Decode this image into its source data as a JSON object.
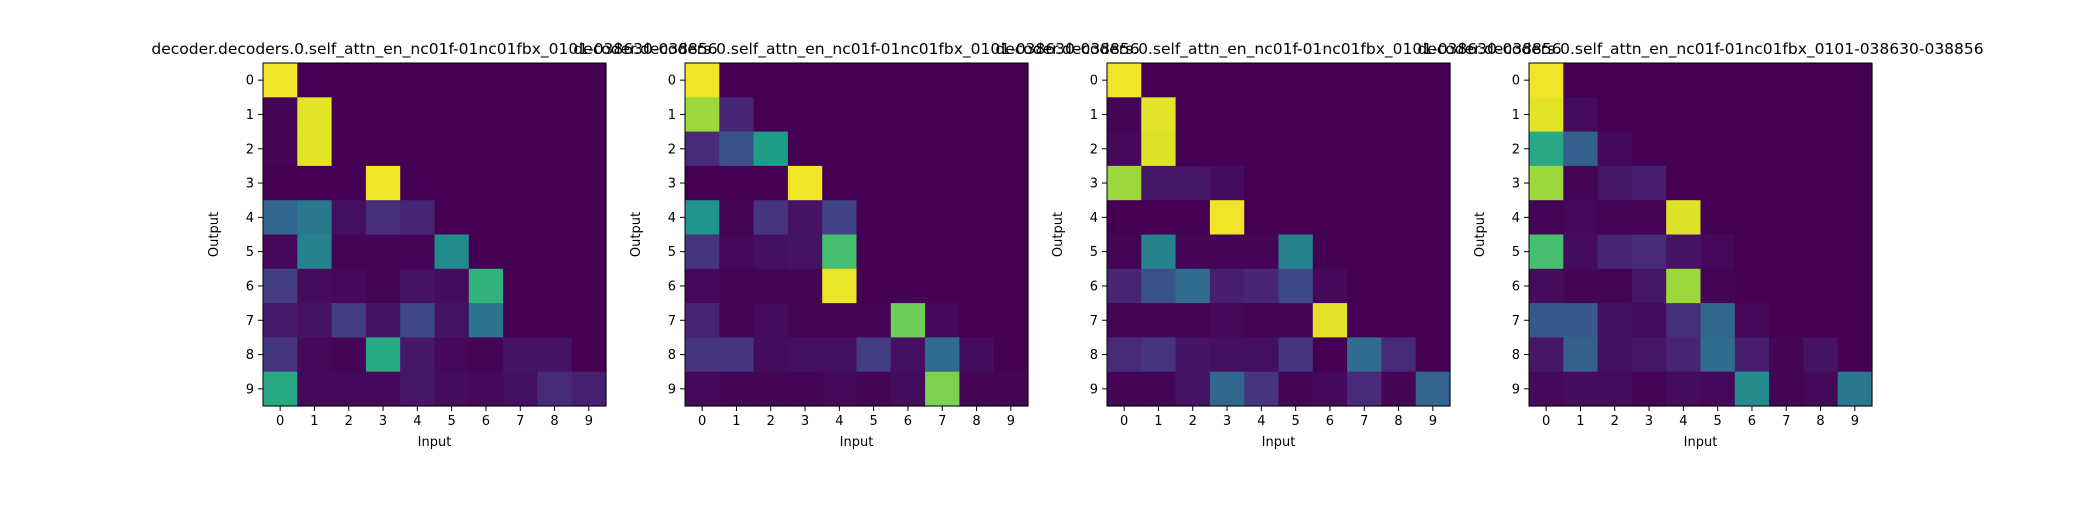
{
  "colors": {
    "viridis": [
      "#440154",
      "#482878",
      "#3e4989",
      "#31688e",
      "#26828e",
      "#1f9e89",
      "#35b779",
      "#6ece58",
      "#b5de2b",
      "#fde725"
    ],
    "axis": "#000000",
    "background": "#ffffff"
  },
  "chart_data": [
    {
      "type": "heatmap",
      "title": "decoder.decoders.0.self_attn_en_nc01f-01nc01fbx_0101-038630-038856",
      "xlabel": "Input",
      "ylabel": "Output",
      "x_ticks": [
        "0",
        "1",
        "2",
        "3",
        "4",
        "5",
        "6",
        "7",
        "8",
        "9"
      ],
      "y_ticks": [
        "0",
        "1",
        "2",
        "3",
        "4",
        "5",
        "6",
        "7",
        "8",
        "9"
      ],
      "colormap": "viridis",
      "value_range": [
        0,
        1
      ],
      "values": [
        [
          0.98,
          0,
          0,
          0,
          0,
          0,
          0,
          0,
          0,
          0
        ],
        [
          0.01,
          0.96,
          0,
          0,
          0,
          0,
          0,
          0,
          0,
          0
        ],
        [
          0.01,
          0.96,
          0,
          0,
          0,
          0,
          0,
          0,
          0,
          0
        ],
        [
          0,
          0,
          0,
          0.98,
          0,
          0,
          0,
          0,
          0,
          0
        ],
        [
          0.33,
          0.4,
          0.04,
          0.13,
          0.1,
          0,
          0,
          0,
          0,
          0
        ],
        [
          0.02,
          0.45,
          0.01,
          0.01,
          0.01,
          0.48,
          0,
          0,
          0,
          0
        ],
        [
          0.18,
          0.03,
          0.02,
          0.01,
          0.05,
          0.03,
          0.65,
          0,
          0,
          0
        ],
        [
          0.07,
          0.05,
          0.18,
          0.05,
          0.22,
          0.05,
          0.38,
          0,
          0,
          0
        ],
        [
          0.15,
          0.02,
          0.01,
          0.6,
          0.06,
          0.02,
          0.01,
          0.05,
          0.05,
          0
        ],
        [
          0.6,
          0.02,
          0.02,
          0.02,
          0.06,
          0.03,
          0.02,
          0.04,
          0.12,
          0.09
        ]
      ]
    },
    {
      "type": "heatmap",
      "title": "decoder.decoders.0.self_attn_en_nc01f-01nc01fbx_0101-038630-038856",
      "xlabel": "Input",
      "ylabel": "Output",
      "x_ticks": [
        "0",
        "1",
        "2",
        "3",
        "4",
        "5",
        "6",
        "7",
        "8",
        "9"
      ],
      "y_ticks": [
        "0",
        "1",
        "2",
        "3",
        "4",
        "5",
        "6",
        "7",
        "8",
        "9"
      ],
      "colormap": "viridis",
      "value_range": [
        0,
        1
      ],
      "values": [
        [
          0.98,
          0,
          0,
          0,
          0,
          0,
          0,
          0,
          0,
          0
        ],
        [
          0.85,
          0.1,
          0,
          0,
          0,
          0,
          0,
          0,
          0,
          0
        ],
        [
          0.12,
          0.25,
          0.55,
          0,
          0,
          0,
          0,
          0,
          0,
          0
        ],
        [
          0,
          0,
          0,
          0.98,
          0,
          0,
          0,
          0,
          0,
          0
        ],
        [
          0.52,
          0.01,
          0.15,
          0.05,
          0.2,
          0,
          0,
          0,
          0,
          0
        ],
        [
          0.15,
          0.02,
          0.04,
          0.05,
          0.7,
          0,
          0,
          0,
          0,
          0
        ],
        [
          0.02,
          0.01,
          0.01,
          0.01,
          0.97,
          0,
          0,
          0,
          0,
          0
        ],
        [
          0.1,
          0.01,
          0.03,
          0.01,
          0.01,
          0.01,
          0.78,
          0.02,
          0,
          0
        ],
        [
          0.15,
          0.15,
          0.03,
          0.04,
          0.04,
          0.18,
          0.04,
          0.35,
          0.03,
          0
        ],
        [
          0.02,
          0.01,
          0.01,
          0.01,
          0.02,
          0.01,
          0.03,
          0.8,
          0.01,
          0.01
        ]
      ]
    },
    {
      "type": "heatmap",
      "title": "decoder.decoders.0.self_attn_en_nc01f-01nc01fbx_0101-038630-038856",
      "xlabel": "Input",
      "ylabel": "Output",
      "x_ticks": [
        "0",
        "1",
        "2",
        "3",
        "4",
        "5",
        "6",
        "7",
        "8",
        "9"
      ],
      "y_ticks": [
        "0",
        "1",
        "2",
        "3",
        "4",
        "5",
        "6",
        "7",
        "8",
        "9"
      ],
      "colormap": "viridis",
      "value_range": [
        0,
        1
      ],
      "values": [
        [
          0.98,
          0,
          0,
          0,
          0,
          0,
          0,
          0,
          0,
          0
        ],
        [
          0.01,
          0.96,
          0,
          0,
          0,
          0,
          0,
          0,
          0,
          0
        ],
        [
          0.02,
          0.95,
          0,
          0,
          0,
          0,
          0,
          0,
          0,
          0
        ],
        [
          0.85,
          0.06,
          0.06,
          0.03,
          0,
          0,
          0,
          0,
          0,
          0
        ],
        [
          0,
          0,
          0,
          0.98,
          0,
          0,
          0,
          0,
          0,
          0
        ],
        [
          0.01,
          0.45,
          0.01,
          0.01,
          0.01,
          0.45,
          0,
          0,
          0,
          0
        ],
        [
          0.1,
          0.25,
          0.35,
          0.08,
          0.1,
          0.22,
          0.02,
          0,
          0,
          0
        ],
        [
          0.01,
          0.01,
          0.01,
          0.02,
          0.01,
          0.01,
          0.96,
          0,
          0,
          0
        ],
        [
          0.12,
          0.15,
          0.05,
          0.04,
          0.04,
          0.15,
          0,
          0.35,
          0.12,
          0
        ],
        [
          0.01,
          0.01,
          0.05,
          0.33,
          0.15,
          0.01,
          0.02,
          0.12,
          0.01,
          0.32
        ]
      ]
    },
    {
      "type": "heatmap",
      "title": "decoder.decoders.0.self_attn_en_nc01f-01nc01fbx_0101-038630-038856",
      "xlabel": "Input",
      "ylabel": "Output",
      "x_ticks": [
        "0",
        "1",
        "2",
        "3",
        "4",
        "5",
        "6",
        "7",
        "8",
        "9"
      ],
      "y_ticks": [
        "0",
        "1",
        "2",
        "3",
        "4",
        "5",
        "6",
        "7",
        "8",
        "9"
      ],
      "colormap": "viridis",
      "value_range": [
        0,
        1
      ],
      "values": [
        [
          0.98,
          0,
          0,
          0,
          0,
          0,
          0,
          0,
          0,
          0
        ],
        [
          0.96,
          0.03,
          0,
          0,
          0,
          0,
          0,
          0,
          0,
          0
        ],
        [
          0.6,
          0.3,
          0.02,
          0,
          0,
          0,
          0,
          0,
          0,
          0
        ],
        [
          0.85,
          0.01,
          0.06,
          0.08,
          0,
          0,
          0,
          0,
          0,
          0
        ],
        [
          0.01,
          0.02,
          0.01,
          0.01,
          0.95,
          0,
          0,
          0,
          0,
          0
        ],
        [
          0.7,
          0.03,
          0.1,
          0.12,
          0.05,
          0.02,
          0,
          0,
          0,
          0
        ],
        [
          0.03,
          0.01,
          0.01,
          0.06,
          0.85,
          0.01,
          0,
          0,
          0,
          0
        ],
        [
          0.28,
          0.28,
          0.04,
          0.03,
          0.13,
          0.33,
          0.02,
          0,
          0,
          0
        ],
        [
          0.06,
          0.3,
          0.04,
          0.06,
          0.1,
          0.35,
          0.08,
          0.01,
          0.05,
          0
        ],
        [
          0.02,
          0.03,
          0.03,
          0.01,
          0.03,
          0.02,
          0.48,
          0.01,
          0.02,
          0.4
        ]
      ]
    }
  ]
}
